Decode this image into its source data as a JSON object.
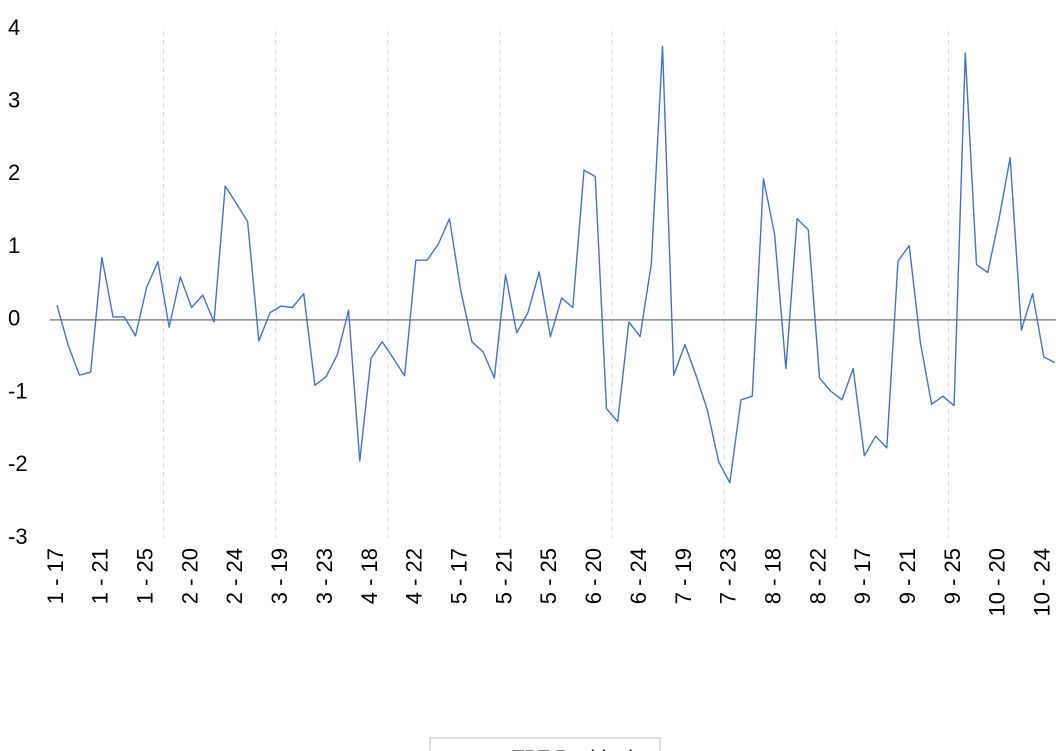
{
  "chart_data": {
    "type": "line",
    "categories": [
      "1 - 17",
      null,
      null,
      null,
      "1 - 21",
      null,
      null,
      null,
      "1 - 25",
      null,
      null,
      null,
      "2 - 20",
      null,
      null,
      null,
      "2 - 24",
      null,
      null,
      null,
      "3 - 19",
      null,
      null,
      null,
      "3 - 23",
      null,
      null,
      null,
      "4 - 18",
      null,
      null,
      null,
      "4 - 22",
      null,
      null,
      null,
      "5 - 17",
      null,
      null,
      null,
      "5 - 21",
      null,
      null,
      null,
      "5 - 25",
      null,
      null,
      null,
      "6 - 20",
      null,
      null,
      null,
      "6 - 24",
      null,
      null,
      null,
      "7 - 19",
      null,
      null,
      null,
      "7 - 23",
      null,
      null,
      null,
      "8 - 18",
      null,
      null,
      null,
      "8 - 22",
      null,
      null,
      null,
      "9 - 17",
      null,
      null,
      null,
      "9 - 21",
      null,
      null,
      null,
      "9 - 25",
      null,
      null,
      null,
      "10 - 20",
      null,
      null,
      null,
      "10 - 24",
      null
    ],
    "series": [
      {
        "name": "TPT Residuals",
        "color": "#4472c4",
        "values": [
          0.2,
          -0.35,
          -0.76,
          -0.72,
          0.86,
          0.04,
          0.04,
          -0.22,
          0.45,
          0.8,
          -0.1,
          0.59,
          0.17,
          0.34,
          -0.03,
          1.84,
          1.6,
          1.35,
          -0.29,
          0.1,
          0.19,
          0.17,
          0.36,
          -0.9,
          -0.78,
          -0.48,
          0.13,
          -1.94,
          -0.53,
          -0.3,
          -0.53,
          -0.77,
          0.82,
          0.82,
          1.04,
          1.39,
          0.41,
          -0.3,
          -0.44,
          -0.8,
          0.62,
          -0.18,
          0.1,
          0.66,
          -0.23,
          0.3,
          0.17,
          2.06,
          1.97,
          -1.22,
          -1.4,
          -0.03,
          -0.23,
          0.77,
          3.76,
          -0.76,
          -0.34,
          -0.77,
          -1.24,
          -1.95,
          -2.24,
          -1.1,
          -1.05,
          1.94,
          1.17,
          -0.67,
          1.39,
          1.24,
          -0.8,
          -0.98,
          -1.1,
          -0.67,
          -1.87,
          -1.6,
          -1.76,
          0.81,
          1.02,
          -0.32,
          -1.16,
          -1.05,
          -1.18,
          3.67,
          0.76,
          0.65,
          1.38,
          2.23,
          -0.14,
          0.36,
          -0.51,
          -0.59
        ]
      }
    ],
    "ylim": [
      -3,
      4
    ],
    "yticks": [
      -3,
      -2,
      -1,
      0,
      1,
      2,
      3,
      4
    ],
    "legend": "bottom"
  }
}
